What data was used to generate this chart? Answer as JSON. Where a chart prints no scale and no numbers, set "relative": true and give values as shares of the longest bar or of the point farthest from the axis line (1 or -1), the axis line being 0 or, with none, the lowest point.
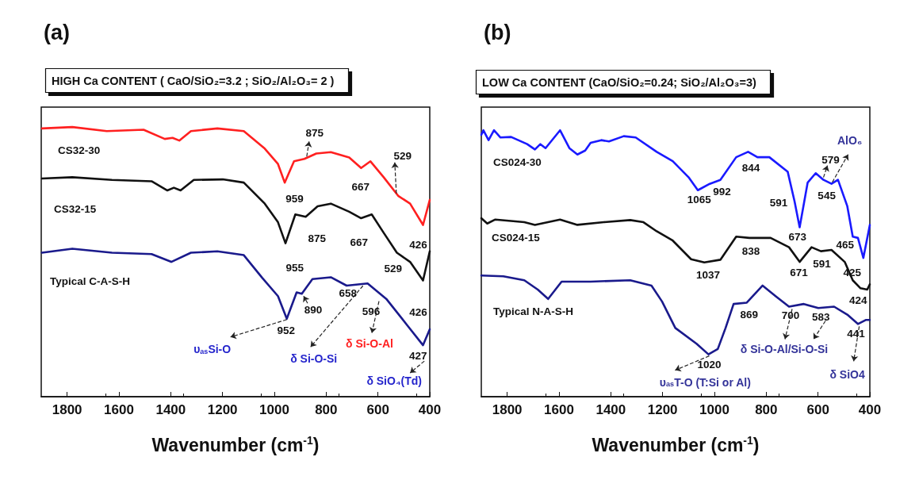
{
  "chart_data": [
    {
      "type": "line",
      "title": "(a)",
      "subtitle": "HIGH Ca CONTENT ( CaO/SiO₂=3.2 ; SiO₂/Al₂O₃= 2 )",
      "xlabel": "Wavenumber (cm$^{-1}$)",
      "relative": true,
      "marker": "none",
      "line_style": "solid",
      "xlim": [
        1900,
        400
      ],
      "xticks": [
        1800,
        1600,
        1400,
        1200,
        1000,
        800,
        600,
        400
      ],
      "series": [
        {
          "name": "CS32-30",
          "color": "#ff2020",
          "x": [
            1897,
            1780,
            1647,
            1505,
            1423,
            1393,
            1367,
            1322,
            1220,
            1118,
            1037,
            986,
            960,
            924,
            884,
            838,
            782,
            711,
            665,
            629,
            578,
            522,
            476,
            426,
            400
          ],
          "values": [
            0.995,
            1.0,
            0.985,
            0.99,
            0.956,
            0.96,
            0.95,
            0.985,
            0.995,
            0.985,
            0.92,
            0.863,
            0.794,
            0.873,
            0.882,
            0.902,
            0.907,
            0.887,
            0.848,
            0.873,
            0.814,
            0.745,
            0.716,
            0.637,
            0.73
          ]
        },
        {
          "name": "CS32-15",
          "color": "#111111",
          "x": [
            1897,
            1780,
            1627,
            1474,
            1413,
            1388,
            1362,
            1311,
            1199,
            1118,
            1037,
            986,
            957,
            919,
            879,
            833,
            782,
            711,
            665,
            624,
            578,
            527,
            476,
            426,
            400
          ],
          "values": [
            0.809,
            0.814,
            0.804,
            0.799,
            0.765,
            0.775,
            0.765,
            0.804,
            0.806,
            0.794,
            0.716,
            0.647,
            0.569,
            0.676,
            0.667,
            0.706,
            0.716,
            0.686,
            0.662,
            0.676,
            0.608,
            0.534,
            0.5,
            0.431,
            0.539
          ]
        },
        {
          "name": "Typical C-A-S-H",
          "color": "#1a1a8c",
          "x": [
            1897,
            1780,
            1627,
            1474,
            1398,
            1322,
            1220,
            1118,
            1047,
            986,
            952,
            914,
            894,
            853,
            782,
            721,
            640,
            568,
            487,
            426,
            400
          ],
          "values": [
            0.534,
            0.549,
            0.534,
            0.529,
            0.5,
            0.534,
            0.539,
            0.525,
            0.441,
            0.373,
            0.289,
            0.387,
            0.382,
            0.436,
            0.443,
            0.412,
            0.42,
            0.363,
            0.265,
            0.191,
            0.25
          ]
        }
      ],
      "annotations": [
        {
          "text": "875",
          "x": 875,
          "y": 0.882
        },
        {
          "text": "959",
          "x": 959,
          "y": 0.794
        },
        {
          "text": "667",
          "x": 667,
          "y": 0.848
        },
        {
          "text": "529",
          "x": 529,
          "y": 0.745
        },
        {
          "text": "426",
          "x": 426,
          "y": 0.637
        },
        {
          "text": "875",
          "x": 875,
          "y": 0.667
        },
        {
          "text": "667",
          "x": 667,
          "y": 0.662
        },
        {
          "text": "955",
          "x": 955,
          "y": 0.569
        },
        {
          "text": "529",
          "x": 529,
          "y": 0.534
        },
        {
          "text": "426",
          "x": 426,
          "y": 0.431
        },
        {
          "text": "890",
          "x": 890,
          "y": 0.382
        },
        {
          "text": "658",
          "x": 658,
          "y": 0.42
        },
        {
          "text": "952",
          "x": 952,
          "y": 0.289
        },
        {
          "text": "596",
          "x": 596,
          "y": 0.363
        },
        {
          "text": "427",
          "x": 427,
          "y": 0.191
        },
        {
          "text": "υ$_{as}$Si-O",
          "x": 952,
          "y": 0.289
        },
        {
          "text": "δ Si-O-Si",
          "x": 658,
          "y": 0.42
        },
        {
          "text": "δ Si-O-Al",
          "x": 596,
          "y": 0.363
        },
        {
          "text": "δ SiO₄(Td)",
          "x": 427,
          "y": 0.191
        }
      ]
    },
    {
      "type": "line",
      "title": "(b)",
      "subtitle": "LOW Ca CONTENT (CaO/SiO₂=0.24; SiO₂/Al₂O₃=3)",
      "xlabel": "Wavenumber (cm$^{-1}$)",
      "relative": true,
      "marker": "none",
      "line_style": "solid",
      "xlim": [
        1900,
        400
      ],
      "xticks": [
        1800,
        1600,
        1400,
        1200,
        1000,
        800,
        600,
        400
      ],
      "series": [
        {
          "name": "CS024-30",
          "color": "#1a1aff",
          "x": [
            1900,
            1892,
            1872,
            1851,
            1826,
            1785,
            1723,
            1693,
            1672,
            1652,
            1596,
            1560,
            1529,
            1499,
            1478,
            1437,
            1407,
            1350,
            1304,
            1223,
            1161,
            1100,
            1064,
            1018,
            977,
            916,
            870,
            834,
            788,
            717,
            691,
            671,
            640,
            609,
            579,
            548,
            523,
            487,
            466,
            446,
            425,
            400
          ],
          "values": [
            0.983,
            1.0,
            0.963,
            1.0,
            0.973,
            0.975,
            0.948,
            0.928,
            0.948,
            0.933,
            1.0,
            0.933,
            0.909,
            0.924,
            0.953,
            0.963,
            0.958,
            0.978,
            0.973,
            0.919,
            0.884,
            0.824,
            0.775,
            0.799,
            0.814,
            0.899,
            0.919,
            0.899,
            0.899,
            0.844,
            0.735,
            0.636,
            0.804,
            0.839,
            0.814,
            0.799,
            0.814,
            0.715,
            0.601,
            0.596,
            0.521,
            0.645
          ]
        },
        {
          "name": "CS024-15",
          "color": "#111111",
          "x": [
            1900,
            1877,
            1846,
            1734,
            1693,
            1596,
            1529,
            1427,
            1325,
            1274,
            1223,
            1161,
            1090,
            1039,
            977,
            916,
            865,
            783,
            712,
            671,
            625,
            589,
            548,
            497,
            466,
            436,
            410,
            400
          ],
          "values": [
            0.67,
            0.65,
            0.665,
            0.655,
            0.645,
            0.665,
            0.645,
            0.655,
            0.663,
            0.655,
            0.621,
            0.586,
            0.516,
            0.504,
            0.514,
            0.601,
            0.596,
            0.596,
            0.561,
            0.506,
            0.561,
            0.546,
            0.551,
            0.506,
            0.437,
            0.407,
            0.402,
            0.422
          ]
        },
        {
          "name": "Typical N-A-S-H",
          "color": "#1a1a8c",
          "x": [
            1900,
            1815,
            1734,
            1682,
            1642,
            1590,
            1478,
            1325,
            1243,
            1202,
            1151,
            1069,
            1023,
            987,
            957,
            926,
            875,
            814,
            763,
            712,
            655,
            599,
            538,
            487,
            446,
            416,
            400
          ],
          "values": [
            0.455,
            0.452,
            0.437,
            0.402,
            0.367,
            0.432,
            0.432,
            0.437,
            0.417,
            0.357,
            0.258,
            0.199,
            0.159,
            0.179,
            0.258,
            0.348,
            0.353,
            0.417,
            0.377,
            0.338,
            0.348,
            0.333,
            0.338,
            0.308,
            0.273,
            0.288,
            0.288
          ]
        }
      ],
      "annotations": [
        {
          "text": "1065",
          "x": 1065,
          "y": 0.775
        },
        {
          "text": "992",
          "x": 992,
          "y": 0.8
        },
        {
          "text": "844",
          "x": 844,
          "y": 0.899
        },
        "591",
        {
          "text": "673",
          "x": 673,
          "y": 0.636
        },
        {
          "text": "579",
          "x": 579,
          "y": 0.814
        },
        {
          "text": "AlO₆",
          "x": 545,
          "y": 0.799
        },
        {
          "text": "545",
          "x": 545,
          "y": 0.799
        },
        {
          "text": "465",
          "x": 465,
          "y": 0.601
        },
        {
          "text": "425",
          "x": 425,
          "y": 0.521
        },
        {
          "text": "1037",
          "x": 1037,
          "y": 0.504
        },
        {
          "text": "838",
          "x": 838,
          "y": 0.596
        },
        {
          "text": "671",
          "x": 671,
          "y": 0.506
        },
        {
          "text": "591",
          "x": 591,
          "y": 0.546
        },
        {
          "text": "424",
          "x": 424,
          "y": 0.402
        },
        {
          "text": "1020",
          "x": 1020,
          "y": 0.159
        },
        {
          "text": "869",
          "x": 869,
          "y": 0.353
        },
        {
          "text": "700",
          "x": 700,
          "y": 0.338
        },
        {
          "text": "583",
          "x": 583,
          "y": 0.333
        },
        {
          "text": "441",
          "x": 441,
          "y": 0.273
        },
        {
          "text": "υ$_{as}$T-O (T:Si or Al)",
          "x": 1020,
          "y": 0.159
        },
        {
          "text": "δ Si-O-Al/Si-O-Si",
          "x": 700,
          "y": 0.338
        },
        {
          "text": "δ SiO4",
          "x": 441,
          "y": 0.273
        }
      ]
    }
  ]
}
